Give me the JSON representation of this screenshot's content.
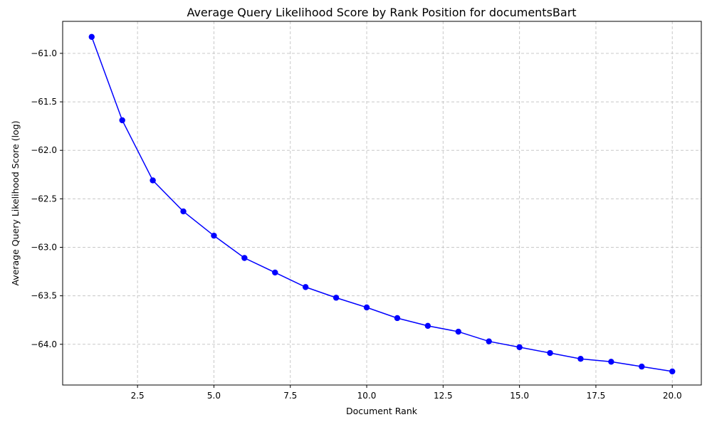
{
  "chart_data": {
    "type": "line",
    "title": "Average Query Likelihood Score by Rank Position for documentsBart",
    "xlabel": "Document Rank",
    "ylabel": "Average Query Likelihood Score (log)",
    "xlim": [
      0.05,
      20.95
    ],
    "ylim": [
      -64.42,
      -60.67
    ],
    "xticks": [
      2.5,
      5.0,
      7.5,
      10.0,
      12.5,
      15.0,
      17.5,
      20.0
    ],
    "xtick_labels": [
      "2.5",
      "5.0",
      "7.5",
      "10.0",
      "12.5",
      "15.0",
      "17.5",
      "20.0"
    ],
    "yticks": [
      -61.0,
      -61.5,
      -62.0,
      -62.5,
      -63.0,
      -63.5,
      -64.0
    ],
    "ytick_labels": [
      "−61.0",
      "−61.5",
      "−62.0",
      "−62.5",
      "−63.0",
      "−63.5",
      "−64.0"
    ],
    "grid": true,
    "series": [
      {
        "color": "#0000ff",
        "marker": "circle",
        "x": [
          1,
          2,
          3,
          4,
          5,
          6,
          7,
          8,
          9,
          10,
          11,
          12,
          13,
          14,
          15,
          16,
          17,
          18,
          19,
          20
        ],
        "values": [
          -60.83,
          -61.69,
          -62.31,
          -62.63,
          -62.88,
          -63.11,
          -63.26,
          -63.41,
          -63.52,
          -63.62,
          -63.73,
          -63.81,
          -63.87,
          -63.97,
          -64.03,
          -64.09,
          -64.15,
          -64.18,
          -64.23,
          -64.28
        ]
      }
    ]
  }
}
